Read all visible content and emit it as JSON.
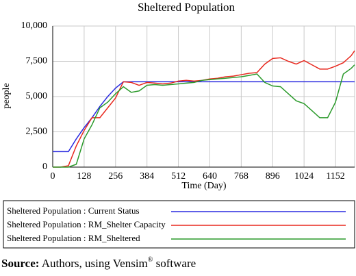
{
  "chart_data": {
    "type": "line",
    "title": "Sheltered Population",
    "x_label": "Time (Day)",
    "y_label": "people",
    "x": [
      0,
      32,
      64,
      96,
      128,
      160,
      192,
      224,
      256,
      288,
      320,
      352,
      384,
      416,
      448,
      480,
      512,
      544,
      576,
      608,
      640,
      672,
      704,
      736,
      768,
      800,
      832,
      864,
      896,
      928,
      960,
      992,
      1024,
      1056,
      1088,
      1120,
      1152,
      1184,
      1216,
      1230
    ],
    "series": [
      {
        "name": "Sheltered Population : Current Status",
        "color": "#2a2ae0",
        "values": [
          1100,
          1100,
          1100,
          2000,
          2800,
          3500,
          4300,
          5000,
          5600,
          6050,
          6050,
          6050,
          6050,
          6050,
          6050,
          6050,
          6050,
          6050,
          6050,
          6050,
          6050,
          6050,
          6050,
          6050,
          6050,
          6050,
          6050,
          6050,
          6050,
          6050,
          6050,
          6050,
          6050,
          6050,
          6050,
          6050,
          6050,
          6050,
          6050,
          6050
        ]
      },
      {
        "name": "Sheltered Population : RM_Shelter Capacity",
        "color": "#e8281e",
        "values": [
          0,
          0,
          100,
          1500,
          2600,
          3500,
          3500,
          4200,
          4900,
          6050,
          6000,
          5800,
          6000,
          5950,
          5900,
          5950,
          6100,
          6150,
          6100,
          6150,
          6250,
          6300,
          6400,
          6450,
          6550,
          6650,
          6700,
          7300,
          7700,
          7750,
          7500,
          7300,
          7550,
          7250,
          6950,
          6950,
          7150,
          7400,
          7900,
          8250
        ]
      },
      {
        "name": "Sheltered Population : RM_Sheltered",
        "color": "#2a9a2a",
        "values": [
          0,
          0,
          0,
          200,
          2000,
          3000,
          4200,
          4600,
          5200,
          5700,
          5300,
          5400,
          5800,
          5850,
          5800,
          5850,
          5900,
          5950,
          6000,
          6150,
          6200,
          6250,
          6300,
          6350,
          6400,
          6500,
          6600,
          6000,
          5750,
          5700,
          5200,
          4700,
          4500,
          4000,
          3500,
          3500,
          4600,
          6600,
          7000,
          7250
        ]
      }
    ],
    "xlim": [
      0,
      1230
    ],
    "ylim": [
      0,
      10000
    ],
    "xticks": [
      0,
      128,
      256,
      384,
      512,
      640,
      768,
      896,
      1024,
      1152
    ],
    "yticks": [
      0,
      {
        "value": 2500,
        "label": "2,500"
      },
      {
        "value": 5000,
        "label": "5,000"
      },
      {
        "value": 7500,
        "label": "7,500"
      },
      {
        "value": 10000,
        "label": "10,000"
      }
    ],
    "grid": true,
    "legend": "bottom"
  },
  "source": {
    "label": "Source:",
    "text": "Authors, using Vensim",
    "mark": "®",
    "tail": "software"
  }
}
